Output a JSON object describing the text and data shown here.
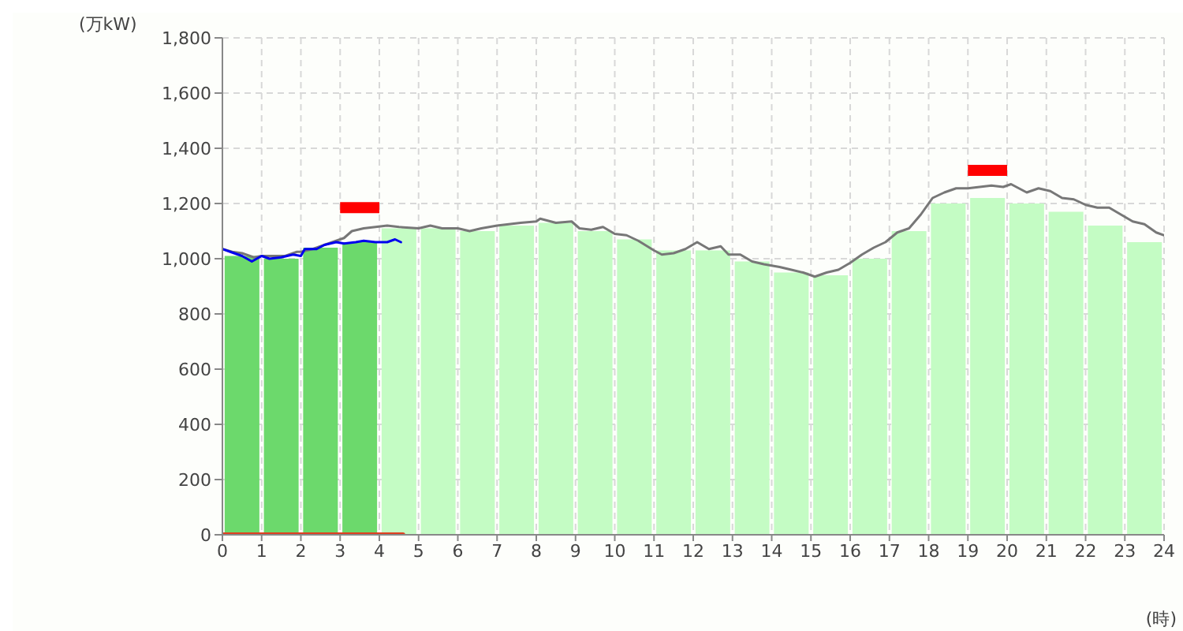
{
  "chart_data": {
    "type": "bar",
    "xlabel": "(時)",
    "ylabel": "(万kW)",
    "x": [
      0.5,
      1.5,
      2.5,
      3.5,
      4.5,
      5.5,
      6.5,
      7.5,
      8.5,
      9.5,
      10.5,
      11.5,
      12.5,
      13.5,
      14.5,
      15.5,
      16.5,
      17.5,
      18.5,
      19.5,
      20.5,
      21.5,
      22.5,
      23.5
    ],
    "xlim": [
      0,
      24
    ],
    "xticks": [
      0,
      1,
      2,
      3,
      4,
      5,
      6,
      7,
      8,
      9,
      10,
      11,
      12,
      13,
      14,
      15,
      16,
      17,
      18,
      19,
      20,
      21,
      22,
      23,
      24
    ],
    "ylim": [
      0,
      1800
    ],
    "yticks": [
      0,
      200,
      400,
      600,
      800,
      {
        "value": 1000,
        "label": "1,000"
      },
      {
        "value": 1200,
        "label": "1,200"
      },
      {
        "value": 1400,
        "label": "1,400"
      },
      {
        "value": 1600,
        "label": "1,600"
      },
      {
        "value": 1800,
        "label": "1,800"
      }
    ],
    "grid": true,
    "line_style": "dashed",
    "series": [
      {
        "values": [
          1010,
          1000,
          1040,
          1060,
          1110,
          1110,
          1100,
          1120,
          1130,
          1100,
          1070,
          1030,
          1030,
          990,
          950,
          940,
          1000,
          1100,
          1200,
          1220,
          1200,
          1170,
          1120,
          1060
        ],
        "colors": [
          "#6cd96c",
          "#6cd96c",
          "#6cd96c",
          "#6cd96c",
          "#c4fcc4",
          "#c4fcc4",
          "#c4fcc4",
          "#c4fcc4",
          "#c4fcc4",
          "#c4fcc4",
          "#c4fcc4",
          "#c4fcc4",
          "#c4fcc4",
          "#c4fcc4",
          "#c4fcc4",
          "#c4fcc4",
          "#c4fcc4",
          "#c4fcc4",
          "#c4fcc4",
          "#c4fcc4",
          "#c4fcc4",
          "#c4fcc4",
          "#c4fcc4",
          "#c4fcc4"
        ]
      },
      {
        "type": "line",
        "color": "#777777",
        "line_style": "solid",
        "x": [
          0,
          0.25,
          0.5,
          0.8,
          1.0,
          1.3,
          1.6,
          1.9,
          2.0,
          2.3,
          2.6,
          2.9,
          3.1,
          3.3,
          3.6,
          3.9,
          4.2,
          4.5,
          5.0,
          5.3,
          5.6,
          6.0,
          6.3,
          6.6,
          7.0,
          7.3,
          7.6,
          8.0,
          8.1,
          8.5,
          8.9,
          9.1,
          9.4,
          9.7,
          10.0,
          10.3,
          10.6,
          11.0,
          11.2,
          11.5,
          11.8,
          12.1,
          12.4,
          12.7,
          12.9,
          13.2,
          13.5,
          13.8,
          14.2,
          14.5,
          14.8,
          15.1,
          15.4,
          15.7,
          16.0,
          16.3,
          16.6,
          16.9,
          17.2,
          17.5,
          17.8,
          18.1,
          18.4,
          18.7,
          19.0,
          19.3,
          19.6,
          19.9,
          20.1,
          20.5,
          20.8,
          21.1,
          21.4,
          21.7,
          22.0,
          22.3,
          22.6,
          22.9,
          23.2,
          23.5,
          23.8,
          24.0
        ],
        "values": [
          1035,
          1025,
          1020,
          1005,
          1010,
          1010,
          1010,
          1025,
          1025,
          1035,
          1050,
          1065,
          1075,
          1100,
          1110,
          1115,
          1120,
          1115,
          1110,
          1120,
          1110,
          1110,
          1100,
          1110,
          1120,
          1125,
          1130,
          1135,
          1145,
          1130,
          1135,
          1110,
          1105,
          1115,
          1090,
          1085,
          1065,
          1030,
          1015,
          1020,
          1035,
          1060,
          1035,
          1045,
          1015,
          1015,
          990,
          980,
          970,
          960,
          950,
          935,
          950,
          960,
          985,
          1015,
          1040,
          1060,
          1095,
          1110,
          1160,
          1220,
          1240,
          1255,
          1255,
          1260,
          1265,
          1260,
          1270,
          1240,
          1255,
          1245,
          1220,
          1215,
          1195,
          1185,
          1185,
          1160,
          1135,
          1125,
          1095,
          1085
        ]
      },
      {
        "type": "line",
        "color": "#0000ee",
        "line_style": "solid",
        "x": [
          0,
          0.2,
          0.5,
          0.75,
          1.0,
          1.2,
          1.5,
          1.8,
          2.0,
          2.1,
          2.4,
          2.6,
          2.9,
          3.1,
          3.4,
          3.6,
          3.9,
          4.2,
          4.4,
          4.55
        ],
        "values": [
          1035,
          1025,
          1010,
          990,
          1010,
          1000,
          1005,
          1015,
          1010,
          1035,
          1035,
          1050,
          1060,
          1055,
          1060,
          1065,
          1060,
          1060,
          1070,
          1060
        ]
      },
      {
        "type": "line",
        "color": "#e04020",
        "line_style": "solid",
        "x": [
          0,
          4.6
        ],
        "values": [
          0,
          0
        ]
      },
      {
        "type": "line",
        "color": "#ff0000",
        "line_style": "solid",
        "x": [
          3,
          4
        ],
        "values": [
          1185,
          1185
        ]
      },
      {
        "type": "line",
        "color": "#ff0000",
        "line_style": "solid",
        "x": [
          19,
          20
        ],
        "values": [
          1320,
          1320
        ]
      }
    ]
  }
}
